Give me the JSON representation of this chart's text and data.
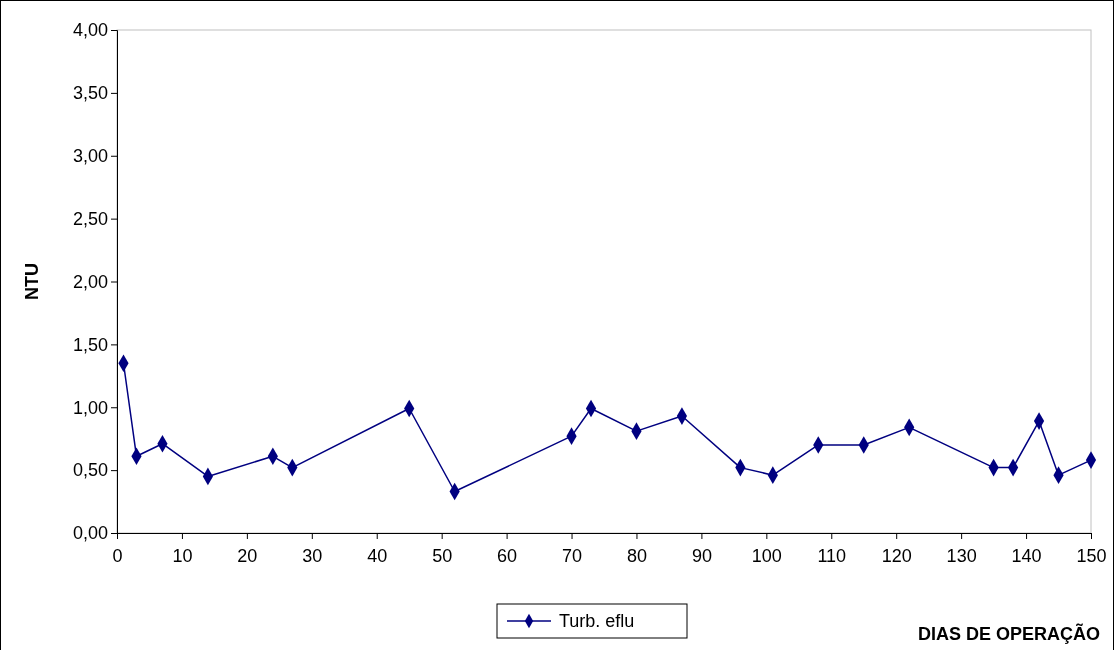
{
  "chart_data": {
    "type": "line",
    "xlabel": "DIAS DE OPERAÇÃO",
    "ylabel": "NTU",
    "x": [
      1,
      3,
      7,
      14,
      24,
      27,
      45,
      52,
      70,
      73,
      80,
      87,
      96,
      101,
      108,
      115,
      122,
      135,
      138,
      142,
      145,
      150
    ],
    "series": [
      {
        "name": "Turb. eflu",
        "color": "#000080",
        "values": [
          1.35,
          0.61,
          0.71,
          0.45,
          0.61,
          0.52,
          0.99,
          0.33,
          0.77,
          0.99,
          0.81,
          0.93,
          0.52,
          0.46,
          0.7,
          0.7,
          0.84,
          0.52,
          0.52,
          0.89,
          0.46,
          0.58
        ]
      }
    ],
    "xlim": [
      0,
      150
    ],
    "xticks": [
      0,
      10,
      20,
      30,
      40,
      50,
      60,
      70,
      80,
      90,
      100,
      110,
      120,
      130,
      140,
      150
    ],
    "ylim": [
      0,
      4
    ],
    "yticks": [
      {
        "value": 0,
        "label": "0,00"
      },
      {
        "value": 0.5,
        "label": "0,50"
      },
      {
        "value": 1,
        "label": "1,00"
      },
      {
        "value": 1.5,
        "label": "1,50"
      },
      {
        "value": 2,
        "label": "2,00"
      },
      {
        "value": 2.5,
        "label": "2,50"
      },
      {
        "value": 3,
        "label": "3,00"
      },
      {
        "value": 3.5,
        "label": "3,50"
      },
      {
        "value": 4,
        "label": "4,00"
      }
    ],
    "grid": false,
    "legend": "bottom",
    "marker": "diamond",
    "line_style": "solid"
  }
}
